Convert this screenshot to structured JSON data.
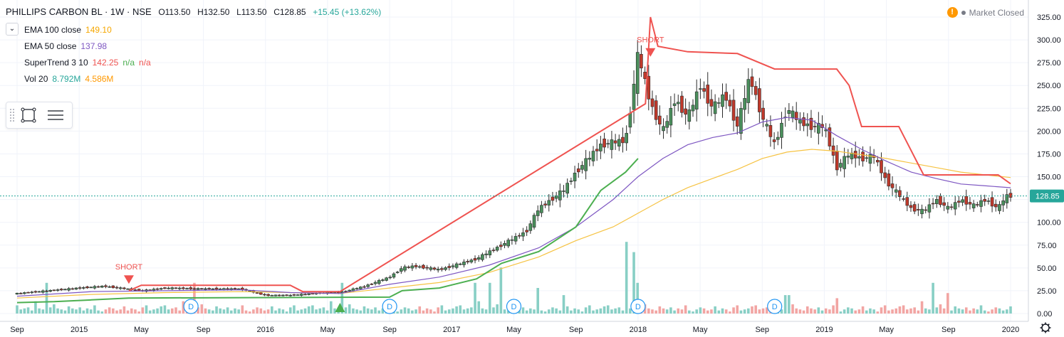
{
  "header": {
    "symbol": "PHILLIPS CARBON BL · 1W · NSE",
    "open": "O113.50",
    "high": "H132.50",
    "low": "L113.50",
    "close": "C128.85",
    "change": "+15.45 (+13.62%)"
  },
  "market_status": "Market Closed",
  "indicators": [
    {
      "label": "EMA 100 close",
      "v1": "149.10",
      "v2": "",
      "v3": "",
      "c1": "#f6c343",
      "c2": "",
      "c3": ""
    },
    {
      "label": "EMA 50 close",
      "v1": "137.98",
      "v2": "",
      "v3": "",
      "c1": "#7e57c2",
      "c2": "",
      "c3": ""
    },
    {
      "label": "SuperTrend 3 10",
      "v1": "142.25",
      "v2": "n/a",
      "v3": "n/a",
      "c1": "#ef5350",
      "c2": "#4caf50",
      "c3": "#ef5350"
    },
    {
      "label": "Vol 20",
      "v1": "8.792M",
      "v2": "4.586M",
      "v3": "",
      "c1": "#26a69a",
      "c2": "#ff9800",
      "c3": ""
    }
  ],
  "colors": {
    "up": "#4a8f5c",
    "down": "#c0392b",
    "vol_up": "#88cfc5",
    "vol_down": "#f2a5a3",
    "ema100": "#f6c343",
    "ema50": "#7e57c2",
    "st_red": "#ef5350",
    "st_green": "#4caf50",
    "last_price": "#26a69a"
  },
  "chart_data": {
    "type": "candlestick",
    "title": "PHILLIPS CARBON BL · 1W · NSE",
    "ylim": [
      0,
      325
    ],
    "y_ticks": [
      "325.00",
      "300.00",
      "275.00",
      "250.00",
      "225.00",
      "200.00",
      "175.00",
      "150.00",
      "125.00",
      "100.00",
      "75.00",
      "50.00",
      "25.00",
      "0.00"
    ],
    "y_tick_values": [
      325,
      300,
      275,
      250,
      225,
      200,
      175,
      150,
      125,
      100,
      75,
      50,
      25,
      0
    ],
    "last_price": 128.85,
    "last_price_label": "128.85",
    "x_ticks": [
      "Sep",
      "2015",
      "May",
      "Sep",
      "2016",
      "May",
      "Sep",
      "2017",
      "May",
      "Sep",
      "2018",
      "May",
      "Sep",
      "2019",
      "May",
      "Sep",
      "2020"
    ],
    "x_tick_t": [
      0,
      2.5,
      5.0,
      7.5,
      10.0,
      12.5,
      15.0,
      17.5,
      20.0,
      22.5,
      25.0,
      27.5,
      30.0,
      32.5,
      35.0,
      37.5,
      40.0
    ],
    "x_unit": "months since Sep 2014",
    "price_path": [
      [
        0,
        22
      ],
      [
        2.5,
        28
      ],
      [
        3.5,
        30
      ],
      [
        5,
        25
      ],
      [
        6,
        28
      ],
      [
        7.5,
        27
      ],
      [
        9,
        27
      ],
      [
        10,
        20
      ],
      [
        11,
        20
      ],
      [
        12.5,
        23
      ],
      [
        13,
        23
      ],
      [
        14,
        30
      ],
      [
        15,
        40
      ],
      [
        15.5,
        50
      ],
      [
        16,
        52
      ],
      [
        17,
        48
      ],
      [
        17.5,
        52
      ],
      [
        18.5,
        60
      ],
      [
        19.5,
        75
      ],
      [
        20.5,
        90
      ],
      [
        21,
        115
      ],
      [
        22,
        135
      ],
      [
        22.5,
        155
      ],
      [
        23.5,
        185
      ],
      [
        24.5,
        190
      ],
      [
        24.8,
        245
      ],
      [
        25,
        285
      ],
      [
        25.5,
        230
      ],
      [
        26,
        200
      ],
      [
        26.5,
        235
      ],
      [
        27,
        215
      ],
      [
        27.5,
        250
      ],
      [
        28,
        225
      ],
      [
        28.5,
        240
      ],
      [
        29,
        205
      ],
      [
        29.5,
        260
      ],
      [
        30,
        215
      ],
      [
        30.5,
        185
      ],
      [
        31,
        225
      ],
      [
        31.5,
        210
      ],
      [
        32,
        205
      ],
      [
        32.5,
        205
      ],
      [
        33,
        160
      ],
      [
        33.5,
        175
      ],
      [
        34,
        170
      ],
      [
        34.5,
        172
      ],
      [
        35,
        145
      ],
      [
        35.5,
        130
      ],
      [
        36,
        115
      ],
      [
        36.5,
        112
      ],
      [
        37,
        125
      ],
      [
        37.5,
        115
      ],
      [
        38,
        125
      ],
      [
        38.5,
        118
      ],
      [
        39,
        125
      ],
      [
        39.5,
        115
      ],
      [
        39.8,
        128.85
      ]
    ],
    "ema100_path": [
      [
        0,
        17
      ],
      [
        3,
        21
      ],
      [
        6,
        23
      ],
      [
        9,
        24
      ],
      [
        11,
        23
      ],
      [
        13,
        22
      ],
      [
        15,
        28
      ],
      [
        17,
        34
      ],
      [
        19,
        45
      ],
      [
        21,
        62
      ],
      [
        22.5,
        80
      ],
      [
        24,
        95
      ],
      [
        25,
        110
      ],
      [
        26,
        125
      ],
      [
        27,
        138
      ],
      [
        28,
        148
      ],
      [
        29,
        158
      ],
      [
        30,
        170
      ],
      [
        31,
        177
      ],
      [
        32,
        180
      ],
      [
        33,
        178
      ],
      [
        34,
        174
      ],
      [
        35,
        170
      ],
      [
        36,
        165
      ],
      [
        37,
        160
      ],
      [
        38,
        155
      ],
      [
        39,
        152
      ],
      [
        40,
        149.1
      ]
    ],
    "ema50_path": [
      [
        0,
        19
      ],
      [
        3,
        24
      ],
      [
        6,
        25
      ],
      [
        9,
        26
      ],
      [
        11,
        23
      ],
      [
        13,
        22
      ],
      [
        15,
        32
      ],
      [
        17,
        40
      ],
      [
        19,
        53
      ],
      [
        21,
        72
      ],
      [
        22.5,
        95
      ],
      [
        24,
        125
      ],
      [
        25,
        150
      ],
      [
        26,
        170
      ],
      [
        27,
        185
      ],
      [
        28,
        193
      ],
      [
        29,
        198
      ],
      [
        30,
        210
      ],
      [
        31,
        215
      ],
      [
        32,
        212
      ],
      [
        33,
        195
      ],
      [
        34,
        180
      ],
      [
        35,
        167
      ],
      [
        36,
        155
      ],
      [
        37,
        148
      ],
      [
        38,
        142
      ],
      [
        39,
        140
      ],
      [
        40,
        137.98
      ]
    ],
    "st_green_path": [
      [
        0,
        12
      ],
      [
        1.5,
        13
      ],
      [
        3,
        15
      ],
      [
        4.5,
        17
      ],
      [
        15,
        18
      ],
      [
        15.5,
        25
      ],
      [
        17,
        28
      ],
      [
        18.5,
        38
      ],
      [
        19.5,
        55
      ],
      [
        21,
        68
      ],
      [
        22.5,
        95
      ],
      [
        23.5,
        135
      ],
      [
        24.5,
        155
      ],
      [
        25,
        170
      ]
    ],
    "st_red_path": [
      [
        4.5,
        25
      ],
      [
        5,
        31
      ],
      [
        11,
        31
      ],
      [
        11.5,
        24
      ],
      [
        13,
        24
      ],
      [
        25.3,
        230
      ],
      [
        25.5,
        325
      ],
      [
        25.8,
        293
      ],
      [
        27,
        287
      ],
      [
        29,
        285
      ],
      [
        30.5,
        268
      ],
      [
        33,
        268
      ],
      [
        33.5,
        250
      ],
      [
        34,
        205
      ],
      [
        35.5,
        205
      ],
      [
        36.5,
        152
      ],
      [
        39.5,
        152
      ],
      [
        40,
        142.25
      ]
    ],
    "volume_pattern": [
      8,
      4,
      5,
      6,
      3,
      12,
      5,
      4,
      30,
      6,
      9,
      5,
      4,
      3,
      7,
      5,
      4,
      6,
      3,
      5,
      4,
      8,
      3,
      2,
      4,
      6,
      5,
      3,
      4,
      7,
      3,
      5,
      4,
      2,
      6,
      8,
      3,
      4,
      5,
      7
    ],
    "volume_spikes": [
      [
        24.5,
        70
      ],
      [
        24.8,
        60
      ],
      [
        19.5,
        45
      ],
      [
        18.5,
        30
      ],
      [
        21,
        25
      ],
      [
        22,
        18
      ],
      [
        37.5,
        20
      ],
      [
        33,
        15
      ],
      [
        31,
        18
      ]
    ],
    "signals": [
      {
        "type": "short",
        "t": 4.5,
        "price": 31,
        "label": "SHORT"
      },
      {
        "type": "short",
        "t": 25.5,
        "price": 280,
        "label": "SHORT"
      },
      {
        "type": "long",
        "t": 13,
        "price": 14,
        "label": ""
      }
    ],
    "dividend_t": [
      7,
      15,
      20,
      25,
      30.5
    ],
    "dividend_label": "D"
  }
}
